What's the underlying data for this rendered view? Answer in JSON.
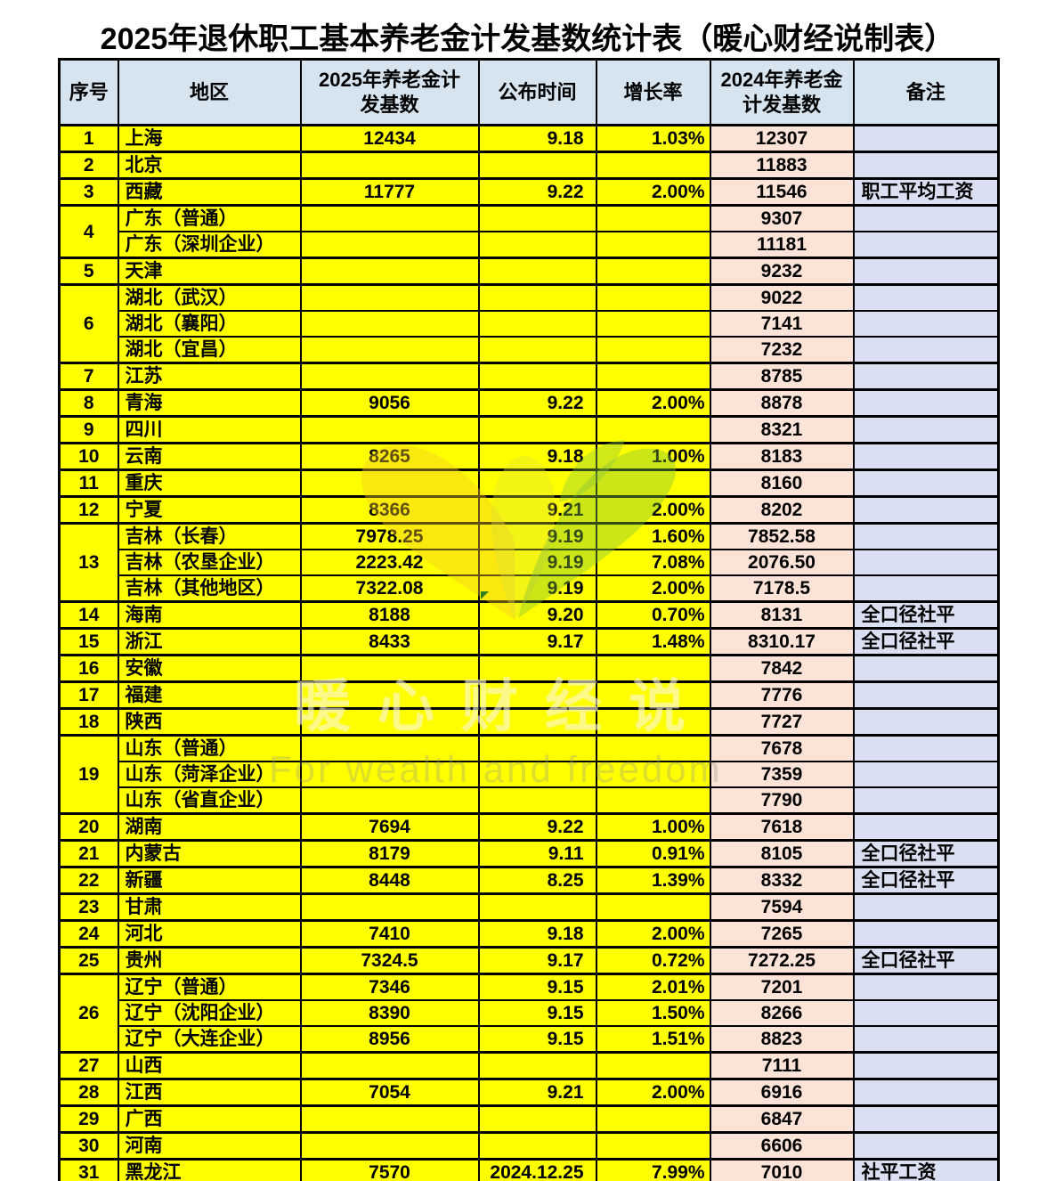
{
  "chart_data": {
    "type": "table",
    "title": "2025年退休职工基本养老金计发基数统计表（暖心财经说制表）",
    "columns": [
      "序号",
      "地区",
      "2025年养老金计\n发基数",
      "公布时间",
      "增长率",
      "2024年养老金\n计发基数",
      "备注"
    ],
    "groups": [
      {
        "no": "1",
        "rows": [
          {
            "region": "上海",
            "base2025": "12434",
            "date": "9.18",
            "growth": "1.03%",
            "base2024": "12307",
            "note": ""
          }
        ]
      },
      {
        "no": "2",
        "rows": [
          {
            "region": "北京",
            "base2025": "",
            "date": "",
            "growth": "",
            "base2024": "11883",
            "note": ""
          }
        ]
      },
      {
        "no": "3",
        "rows": [
          {
            "region": "西藏",
            "base2025": "11777",
            "date": "9.22",
            "growth": "2.00%",
            "base2024": "11546",
            "note": "职工平均工资"
          }
        ]
      },
      {
        "no": "4",
        "rows": [
          {
            "region": "广东（普通）",
            "base2025": "",
            "date": "",
            "growth": "",
            "base2024": "9307",
            "note": ""
          },
          {
            "region": "广东（深圳企业）",
            "base2025": "",
            "date": "",
            "growth": "",
            "base2024": "11181",
            "note": ""
          }
        ]
      },
      {
        "no": "5",
        "rows": [
          {
            "region": "天津",
            "base2025": "",
            "date": "",
            "growth": "",
            "base2024": "9232",
            "note": ""
          }
        ]
      },
      {
        "no": "6",
        "rows": [
          {
            "region": "湖北（武汉）",
            "base2025": "",
            "date": "",
            "growth": "",
            "base2024": "9022",
            "note": ""
          },
          {
            "region": "湖北（襄阳）",
            "base2025": "",
            "date": "",
            "growth": "",
            "base2024": "7141",
            "note": ""
          },
          {
            "region": "湖北（宜昌）",
            "base2025": "",
            "date": "",
            "growth": "",
            "base2024": "7232",
            "note": ""
          }
        ]
      },
      {
        "no": "7",
        "rows": [
          {
            "region": "江苏",
            "base2025": "",
            "date": "",
            "growth": "",
            "base2024": "8785",
            "note": ""
          }
        ]
      },
      {
        "no": "8",
        "rows": [
          {
            "region": "青海",
            "base2025": "9056",
            "date": "9.22",
            "growth": "2.00%",
            "base2024": "8878",
            "note": ""
          }
        ]
      },
      {
        "no": "9",
        "rows": [
          {
            "region": "四川",
            "base2025": "",
            "date": "",
            "growth": "",
            "base2024": "8321",
            "note": ""
          }
        ]
      },
      {
        "no": "10",
        "rows": [
          {
            "region": "云南",
            "base2025": "8265",
            "date": "9.18",
            "growth": "1.00%",
            "base2024": "8183",
            "note": ""
          }
        ]
      },
      {
        "no": "11",
        "rows": [
          {
            "region": "重庆",
            "base2025": "",
            "date": "",
            "growth": "",
            "base2024": "8160",
            "note": ""
          }
        ]
      },
      {
        "no": "12",
        "rows": [
          {
            "region": "宁夏",
            "base2025": "8366",
            "date": "9.21",
            "growth": "2.00%",
            "base2024": "8202",
            "note": ""
          }
        ]
      },
      {
        "no": "13",
        "rows": [
          {
            "region": "吉林（长春）",
            "base2025": "7978.25",
            "date": "9.19",
            "growth": "1.60%",
            "base2024": "7852.58",
            "note": ""
          },
          {
            "region": "吉林（农垦企业）",
            "base2025": "2223.42",
            "date": "9.19",
            "growth": "7.08%",
            "base2024": "2076.50",
            "note": ""
          },
          {
            "region": "吉林（其他地区）",
            "base2025": "7322.08",
            "date": "9.19",
            "growth": "2.00%",
            "base2024": "7178.5",
            "note": ""
          }
        ]
      },
      {
        "no": "14",
        "rows": [
          {
            "region": "海南",
            "base2025": "8188",
            "date": "9.20",
            "growth": "0.70%",
            "base2024": "8131",
            "note": "全口径社平"
          }
        ]
      },
      {
        "no": "15",
        "rows": [
          {
            "region": "浙江",
            "base2025": "8433",
            "date": "9.17",
            "growth": "1.48%",
            "base2024": "8310.17",
            "note": "全口径社平"
          }
        ]
      },
      {
        "no": "16",
        "rows": [
          {
            "region": "安徽",
            "base2025": "",
            "date": "",
            "growth": "",
            "base2024": "7842",
            "note": ""
          }
        ]
      },
      {
        "no": "17",
        "rows": [
          {
            "region": "福建",
            "base2025": "",
            "date": "",
            "growth": "",
            "base2024": "7776",
            "note": ""
          }
        ]
      },
      {
        "no": "18",
        "rows": [
          {
            "region": "陕西",
            "base2025": "",
            "date": "",
            "growth": "",
            "base2024": "7727",
            "note": ""
          }
        ]
      },
      {
        "no": "19",
        "rows": [
          {
            "region": "山东（普通）",
            "base2025": "",
            "date": "",
            "growth": "",
            "base2024": "7678",
            "note": ""
          },
          {
            "region": "山东（菏泽企业）",
            "base2025": "",
            "date": "",
            "growth": "",
            "base2024": "7359",
            "note": ""
          },
          {
            "region": "山东（省直企业）",
            "base2025": "",
            "date": "",
            "growth": "",
            "base2024": "7790",
            "note": ""
          }
        ]
      },
      {
        "no": "20",
        "rows": [
          {
            "region": "湖南",
            "base2025": "7694",
            "date": "9.22",
            "growth": "1.00%",
            "base2024": "7618",
            "note": ""
          }
        ]
      },
      {
        "no": "21",
        "rows": [
          {
            "region": "内蒙古",
            "base2025": "8179",
            "date": "9.11",
            "growth": "0.91%",
            "base2024": "8105",
            "note": "全口径社平"
          }
        ]
      },
      {
        "no": "22",
        "rows": [
          {
            "region": "新疆",
            "base2025": "8448",
            "date": "8.25",
            "growth": "1.39%",
            "base2024": "8332",
            "note": "全口径社平"
          }
        ]
      },
      {
        "no": "23",
        "rows": [
          {
            "region": "甘肃",
            "base2025": "",
            "date": "",
            "growth": "",
            "base2024": "7594",
            "note": ""
          }
        ]
      },
      {
        "no": "24",
        "rows": [
          {
            "region": "河北",
            "base2025": "7410",
            "date": "9.18",
            "growth": "2.00%",
            "base2024": "7265",
            "note": ""
          }
        ]
      },
      {
        "no": "25",
        "rows": [
          {
            "region": "贵州",
            "base2025": "7324.5",
            "date": "9.17",
            "growth": "0.72%",
            "base2024": "7272.25",
            "note": "全口径社平"
          }
        ]
      },
      {
        "no": "26",
        "rows": [
          {
            "region": "辽宁（普通）",
            "base2025": "7346",
            "date": "9.15",
            "growth": "2.01%",
            "base2024": "7201",
            "note": ""
          },
          {
            "region": "辽宁（沈阳企业）",
            "base2025": "8390",
            "date": "9.15",
            "growth": "1.50%",
            "base2024": "8266",
            "note": ""
          },
          {
            "region": "辽宁（大连企业）",
            "base2025": "8956",
            "date": "9.15",
            "growth": "1.51%",
            "base2024": "8823",
            "note": ""
          }
        ]
      },
      {
        "no": "27",
        "rows": [
          {
            "region": "山西",
            "base2025": "",
            "date": "",
            "growth": "",
            "base2024": "7111",
            "note": ""
          }
        ]
      },
      {
        "no": "28",
        "rows": [
          {
            "region": "江西",
            "base2025": "7054",
            "date": "9.21",
            "growth": "2.00%",
            "base2024": "6916",
            "note": ""
          }
        ]
      },
      {
        "no": "29",
        "rows": [
          {
            "region": "广西",
            "base2025": "",
            "date": "",
            "growth": "",
            "base2024": "6847",
            "note": ""
          }
        ]
      },
      {
        "no": "30",
        "rows": [
          {
            "region": "河南",
            "base2025": "",
            "date": "",
            "growth": "",
            "base2024": "6606",
            "note": ""
          }
        ]
      },
      {
        "no": "31",
        "rows": [
          {
            "region": "黑龙江",
            "base2025": "7570",
            "date": "2024.12.25",
            "growth": "7.99%",
            "base2024": "7010",
            "note": "社平工资"
          }
        ]
      }
    ]
  },
  "watermark": {
    "cn": "暖心财经说",
    "en": "For wealth and freedom"
  },
  "colors": {
    "header_bg": "#d6e4f0",
    "data_yellow": "#ffff00",
    "col_2024_bg": "#fbe3d7",
    "col_note_bg": "#dbdff2",
    "border": "#000000",
    "logo_yellow": "#f2c722",
    "logo_green": "#7fbe3a"
  }
}
